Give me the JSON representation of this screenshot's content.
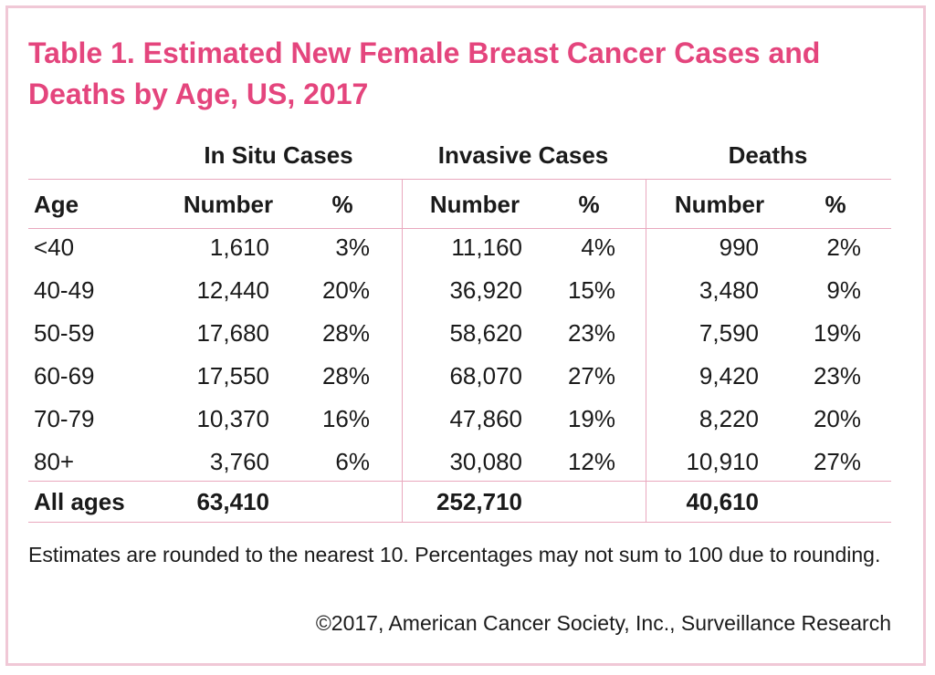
{
  "title": "Table 1. Estimated New Female Breast Cancer Cases and Deaths by Age, US, 2017",
  "colors": {
    "accent": "#e4457d",
    "rule": "#e9a8be",
    "border": "#f0c8d6"
  },
  "column_groups": [
    "In Situ Cases",
    "Invasive Cases",
    "Deaths"
  ],
  "column_headers": [
    "Age",
    "Number",
    "%",
    "Number",
    "%",
    "Number",
    "%"
  ],
  "rows": [
    [
      "<40",
      "1,610",
      "3%",
      "11,160",
      "4%",
      "990",
      "2%"
    ],
    [
      "40-49",
      "12,440",
      "20%",
      "36,920",
      "15%",
      "3,480",
      "9%"
    ],
    [
      "50-59",
      "17,680",
      "28%",
      "58,620",
      "23%",
      "7,590",
      "19%"
    ],
    [
      "60-69",
      "17,550",
      "28%",
      "68,070",
      "27%",
      "9,420",
      "23%"
    ],
    [
      "70-79",
      "10,370",
      "16%",
      "47,860",
      "19%",
      "8,220",
      "20%"
    ],
    [
      "80+",
      "3,760",
      "6%",
      "30,080",
      "12%",
      "10,910",
      "27%"
    ]
  ],
  "total_row": [
    "All ages",
    "63,410",
    "",
    "252,710",
    "",
    "40,610",
    ""
  ],
  "footnote": "Estimates are rounded to the nearest 10. Percentages may not sum to 100 due to rounding.",
  "copyright": "©2017, American Cancer Society, Inc., Surveillance Research",
  "chart_data": {
    "type": "table",
    "title": "Table 1. Estimated New Female Breast Cancer Cases and Deaths by Age, US, 2017",
    "categories": [
      "<40",
      "40-49",
      "50-59",
      "60-69",
      "70-79",
      "80+"
    ],
    "series": [
      {
        "name": "In Situ Cases Number",
        "values": [
          1610,
          12440,
          17680,
          17550,
          10370,
          3760
        ]
      },
      {
        "name": "In Situ Cases %",
        "values": [
          3,
          20,
          28,
          28,
          16,
          6
        ]
      },
      {
        "name": "Invasive Cases Number",
        "values": [
          11160,
          36920,
          58620,
          68070,
          47860,
          30080
        ]
      },
      {
        "name": "Invasive Cases %",
        "values": [
          4,
          15,
          23,
          27,
          19,
          12
        ]
      },
      {
        "name": "Deaths Number",
        "values": [
          990,
          3480,
          7590,
          9420,
          8220,
          10910
        ]
      },
      {
        "name": "Deaths %",
        "values": [
          2,
          9,
          19,
          23,
          20,
          27
        ]
      }
    ],
    "totals": {
      "In Situ Cases": 63410,
      "Invasive Cases": 252710,
      "Deaths": 40610
    }
  }
}
